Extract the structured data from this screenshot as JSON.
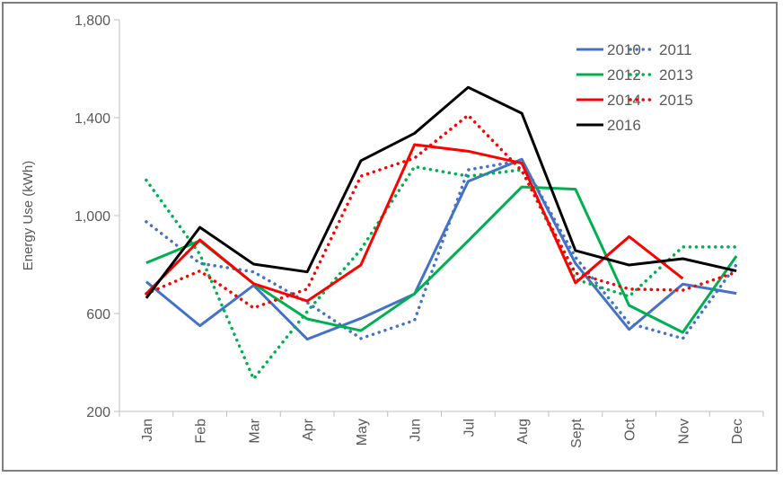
{
  "chart_data": {
    "type": "line",
    "title": "",
    "xlabel": "",
    "ylabel": "Energy Use (kWh)",
    "ylim": [
      200,
      1800
    ],
    "yticks": [
      200,
      600,
      1000,
      1400,
      1800
    ],
    "ytick_labels": [
      "200",
      "600",
      "1,000",
      "1,400",
      "1,800"
    ],
    "grid": false,
    "legend_position": "top-right",
    "categories": [
      "Jan",
      "Feb",
      "Mar",
      "Apr",
      "May",
      "Jun",
      "Jul",
      "Aug",
      "Sept",
      "Oct",
      "Nov",
      "Dec"
    ],
    "series": [
      {
        "name": "2010",
        "color": "#4472c4",
        "style": "solid",
        "values": [
          730,
          550,
          715,
          495,
          580,
          680,
          1140,
          1230,
          805,
          535,
          720,
          682
        ]
      },
      {
        "name": "2011",
        "color": "#4472c4",
        "style": "dotted",
        "values": [
          975,
          805,
          770,
          645,
          498,
          572,
          1187,
          1225,
          830,
          560,
          498,
          800
        ]
      },
      {
        "name": "2012",
        "color": "#00b050",
        "style": "solid",
        "values": [
          807,
          897,
          722,
          578,
          530,
          681,
          897,
          1117,
          1108,
          633,
          523,
          835
        ]
      },
      {
        "name": "2013",
        "color": "#00b050",
        "style": "dotted",
        "values": [
          1145,
          842,
          333,
          608,
          861,
          1200,
          1161,
          1187,
          740,
          670,
          872,
          872
        ]
      },
      {
        "name": "2014",
        "color": "#ff0000",
        "style": "solid",
        "values": [
          681,
          901,
          722,
          651,
          798,
          1290,
          1263,
          1214,
          725,
          914,
          743,
          null
        ]
      },
      {
        "name": "2015",
        "color": "#ff0000",
        "style": "dotted",
        "values": [
          681,
          774,
          623,
          700,
          1161,
          1235,
          1410,
          1183,
          765,
          700,
          695,
          769
        ]
      },
      {
        "name": "2016",
        "color": "#000000",
        "style": "solid",
        "values": [
          663,
          952,
          802,
          770,
          1224,
          1336,
          1524,
          1418,
          857,
          798,
          824,
          774
        ]
      }
    ]
  }
}
